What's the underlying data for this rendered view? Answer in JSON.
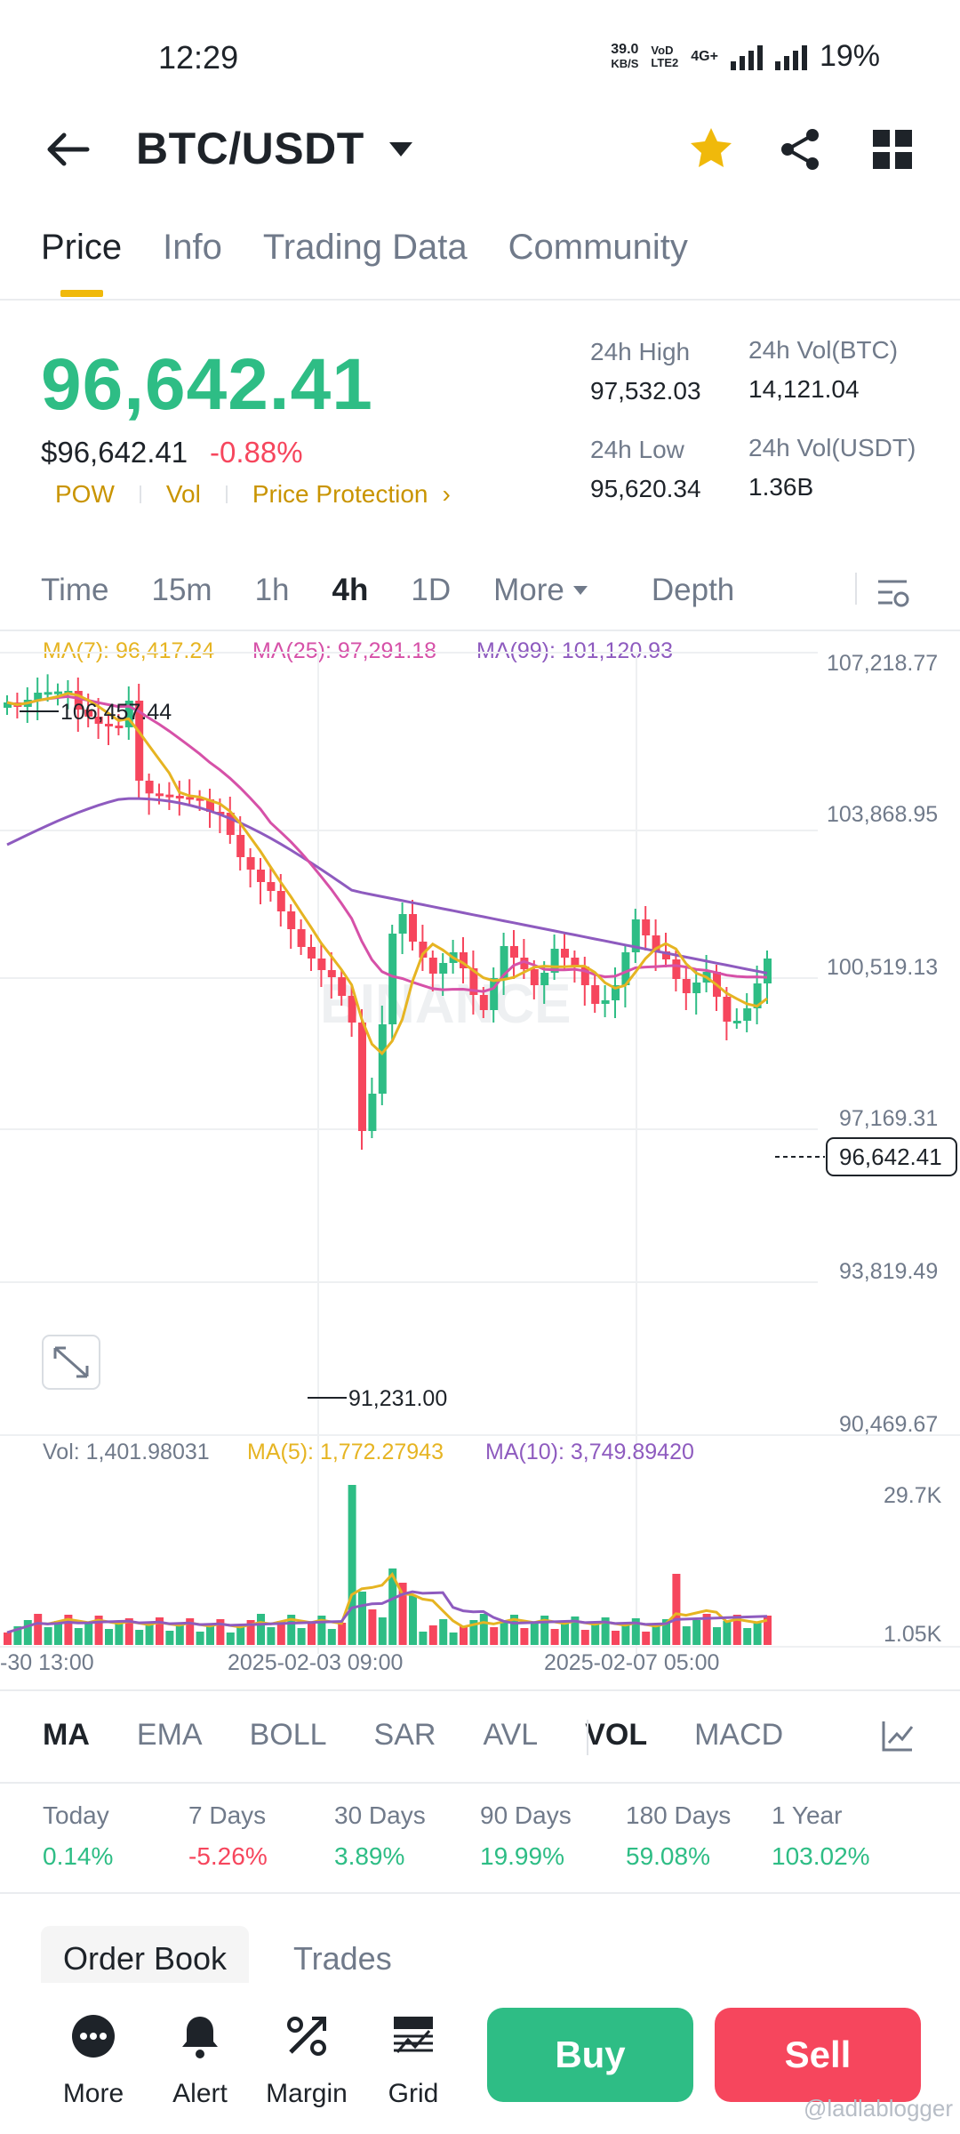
{
  "status_bar": {
    "time": "12:29",
    "net_speed_top": "39.0",
    "net_speed_unit": "KB/S",
    "net_type": "4G+",
    "battery": "19%"
  },
  "header": {
    "title": "BTC/USDT"
  },
  "tabs": [
    {
      "label": "Price"
    },
    {
      "label": "Info"
    },
    {
      "label": "Trading Data"
    },
    {
      "label": "Community"
    }
  ],
  "price": {
    "last": "96,642.41",
    "usd": "$96,642.41",
    "change": "-0.88%",
    "tags": [
      "POW",
      "Vol",
      "Price Protection"
    ],
    "high_label": "24h High",
    "high": "97,532.03",
    "low_label": "24h Low",
    "low": "95,620.34",
    "vol_btc_label": "24h Vol(BTC)",
    "vol_btc": "14,121.04",
    "vol_usdt_label": "24h Vol(USDT)",
    "vol_usdt": "1.36B"
  },
  "timeframes": [
    {
      "label": "Time"
    },
    {
      "label": "15m"
    },
    {
      "label": "1h"
    },
    {
      "label": "4h"
    },
    {
      "label": "1D"
    },
    {
      "label": "More"
    },
    {
      "label": "Depth"
    }
  ],
  "chart": {
    "ma7": "MA(7): 96,417.24",
    "ma25": "MA(25): 97,291.18",
    "ma99": "MA(99): 101,120.93",
    "y_ticks": [
      "107,218.77",
      "103,868.95",
      "100,519.13",
      "97,169.31",
      "93,819.49",
      "90,469.67"
    ],
    "high_marker": "106,457.44",
    "low_marker": "91,231.00",
    "last_price_tag": "96,642.41",
    "watermark": "BINANCE",
    "vol_label": "Vol: 1,401.98031",
    "vol_ma5": "MA(5): 1,772.27943",
    "vol_ma10": "MA(10): 3,749.89420",
    "vol_ticks": [
      "29.7K",
      "1.05K"
    ],
    "x_ticks": [
      "-30 13:00",
      "2025-02-03 09:00",
      "2025-02-07 05:00"
    ],
    "colors": {
      "up": "#2ebd85",
      "down": "#f6465d",
      "ma7": "#e6b422",
      "ma25": "#d651a8",
      "ma99": "#8e5bbf"
    }
  },
  "indicators": [
    {
      "label": "MA"
    },
    {
      "label": "EMA"
    },
    {
      "label": "BOLL"
    },
    {
      "label": "SAR"
    },
    {
      "label": "AVL"
    },
    {
      "label": "VOL"
    },
    {
      "label": "MACD"
    }
  ],
  "performance": [
    {
      "label": "Today",
      "value": "0.14%"
    },
    {
      "label": "7 Days",
      "value": "-5.26%"
    },
    {
      "label": "30 Days",
      "value": "3.89%"
    },
    {
      "label": "90 Days",
      "value": "19.99%"
    },
    {
      "label": "180 Days",
      "value": "59.08%"
    },
    {
      "label": "1 Year",
      "value": "103.02%"
    }
  ],
  "book_tabs": {
    "order_book": "Order Book",
    "trades": "Trades"
  },
  "bottom_bar": {
    "more": "More",
    "alert": "Alert",
    "margin": "Margin",
    "grid": "Grid",
    "buy": "Buy",
    "sell": "Sell"
  },
  "watermark_credit": "@ladlablogger"
}
